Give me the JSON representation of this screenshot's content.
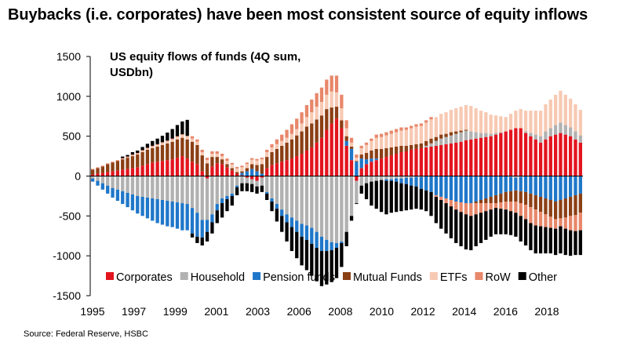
{
  "title": "Buybacks (i.e. corporates) have been most consistent source of equity inflows",
  "source": "Source: Federal Reserve, HSBC",
  "chart_data": {
    "type": "bar",
    "stacked": true,
    "subtitle_line1": "US equity flows of funds (4Q sum,",
    "subtitle_line2": "USDbn)",
    "ylim": [
      -1500,
      1500
    ],
    "yticks": [
      -1500,
      -1000,
      -500,
      0,
      500,
      1000,
      1500
    ],
    "x_tick_labels": [
      "1995",
      "1997",
      "1999",
      "2001",
      "2003",
      "2006",
      "2008",
      "2010",
      "2012",
      "2014",
      "2016",
      "2018"
    ],
    "legend_position": "bottom-inside",
    "grid": false,
    "series": [
      {
        "name": "Corporates",
        "color": "#e3141e",
        "values": [
          20,
          30,
          40,
          50,
          60,
          70,
          80,
          90,
          100,
          110,
          130,
          150,
          170,
          180,
          190,
          200,
          210,
          230,
          250,
          220,
          180,
          150,
          60,
          -30,
          120,
          160,
          150,
          110,
          70,
          30,
          10,
          -20,
          -40,
          -60,
          -20,
          100,
          140,
          160,
          180,
          200,
          220,
          250,
          280,
          320,
          360,
          420,
          480,
          580,
          660,
          720,
          600,
          380,
          200,
          -60,
          100,
          150,
          180,
          200,
          220,
          240,
          260,
          280,
          300,
          310,
          330,
          340,
          350,
          360,
          370,
          380,
          390,
          400,
          410,
          420,
          430,
          450,
          460,
          470,
          480,
          490,
          500,
          520,
          540,
          560,
          580,
          600,
          600,
          540,
          500,
          460,
          420,
          460,
          500,
          520,
          540,
          520,
          500,
          460,
          420
        ]
      },
      {
        "name": "Household",
        "color": "#b1b1b1",
        "values": [
          -30,
          -60,
          -90,
          -120,
          -150,
          -170,
          -190,
          -210,
          -230,
          -250,
          -260,
          -270,
          -280,
          -290,
          -300,
          -310,
          -320,
          -330,
          -340,
          -350,
          -400,
          -460,
          -550,
          -520,
          -480,
          -350,
          -280,
          -250,
          -220,
          -120,
          -90,
          -70,
          -60,
          -70,
          -100,
          -200,
          -280,
          -350,
          -420,
          -480,
          -520,
          -560,
          -600,
          -620,
          -650,
          -700,
          -760,
          -800,
          -830,
          -840,
          -820,
          -700,
          -500,
          -280,
          -120,
          -90,
          -70,
          -60,
          -50,
          -40,
          -40,
          -30,
          -30,
          -20,
          -20,
          -10,
          -10,
          20,
          40,
          60,
          80,
          90,
          100,
          110,
          120,
          120,
          100,
          80,
          60,
          50,
          30,
          20,
          10,
          0,
          -10,
          -20,
          -10,
          20,
          40,
          60,
          80,
          100,
          100,
          120,
          130,
          120,
          110,
          100,
          90,
          110,
          120
        ]
      },
      {
        "name": "Pension funds",
        "color": "#1f77c9",
        "values": [
          -40,
          -60,
          -80,
          -100,
          -120,
          -140,
          -160,
          -180,
          -200,
          -220,
          -240,
          -260,
          -280,
          -300,
          -310,
          -320,
          -320,
          -330,
          -340,
          -330,
          -320,
          -300,
          -220,
          -150,
          -100,
          -80,
          -60,
          -40,
          -30,
          -20,
          30,
          60,
          90,
          60,
          30,
          -20,
          -40,
          -60,
          -80,
          -100,
          -120,
          -140,
          -160,
          -180,
          -200,
          -200,
          -180,
          -140,
          -100,
          -60,
          -20,
          60,
          140,
          180,
          120,
          60,
          40,
          20,
          0,
          -20,
          -20,
          -40,
          -60,
          -80,
          -100,
          -120,
          -150,
          -180,
          -200,
          -240,
          -260,
          -280,
          -300,
          -320,
          -330,
          -340,
          -340,
          -320,
          -300,
          -280,
          -260,
          -240,
          -220,
          -200,
          -180,
          -160,
          -180,
          -200,
          -220,
          -240,
          -260,
          -280,
          -300,
          -320,
          -300,
          -280,
          -260,
          -240,
          -220,
          -200,
          -180
        ]
      },
      {
        "name": "Mutual Funds",
        "color": "#8b3f14",
        "values": [
          60,
          70,
          80,
          100,
          110,
          120,
          130,
          140,
          150,
          160,
          170,
          180,
          180,
          190,
          200,
          210,
          220,
          230,
          230,
          240,
          250,
          240,
          200,
          160,
          120,
          80,
          60,
          40,
          30,
          20,
          20,
          40,
          60,
          80,
          120,
          140,
          160,
          180,
          200,
          220,
          240,
          260,
          280,
          300,
          300,
          290,
          280,
          260,
          200,
          150,
          100,
          60,
          30,
          10,
          50,
          80,
          100,
          120,
          120,
          110,
          100,
          90,
          80,
          70,
          60,
          60,
          60,
          60,
          60,
          50,
          50,
          40,
          40,
          30,
          20,
          10,
          0,
          -20,
          -40,
          -60,
          -80,
          -100,
          -110,
          -120,
          -130,
          -140,
          -150,
          -160,
          -170,
          -180,
          -190,
          -200,
          -210,
          -220,
          -230,
          -240,
          -240,
          -250,
          -240,
          -230,
          -220
        ]
      },
      {
        "name": "ETFs",
        "color": "#f7c9b3",
        "values": [
          0,
          0,
          0,
          0,
          0,
          0,
          5,
          5,
          10,
          10,
          15,
          15,
          20,
          20,
          25,
          25,
          30,
          30,
          35,
          35,
          40,
          40,
          40,
          40,
          40,
          40,
          40,
          40,
          45,
          45,
          50,
          50,
          55,
          55,
          60,
          60,
          60,
          60,
          60,
          60,
          70,
          80,
          100,
          120,
          140,
          160,
          170,
          180,
          200,
          180,
          150,
          100,
          50,
          40,
          80,
          100,
          120,
          140,
          150,
          160,
          170,
          180,
          190,
          200,
          210,
          220,
          220,
          230,
          240,
          250,
          260,
          270,
          280,
          290,
          300,
          310,
          320,
          300,
          280,
          260,
          240,
          220,
          200,
          180,
          200,
          220,
          240,
          260,
          280,
          300,
          320,
          340,
          360,
          380,
          400,
          380,
          360,
          340,
          320,
          300,
          280
        ]
      },
      {
        "name": "RoW",
        "color": "#e8876a",
        "values": [
          10,
          10,
          10,
          10,
          10,
          10,
          10,
          10,
          10,
          10,
          10,
          10,
          10,
          10,
          10,
          10,
          10,
          10,
          10,
          10,
          30,
          30,
          30,
          30,
          30,
          30,
          30,
          30,
          20,
          20,
          20,
          20,
          20,
          20,
          20,
          30,
          40,
          60,
          80,
          100,
          120,
          130,
          140,
          150,
          160,
          170,
          180,
          190,
          200,
          210,
          170,
          100,
          60,
          40,
          30,
          30,
          30,
          40,
          40,
          40,
          40,
          40,
          40,
          30,
          30,
          30,
          30,
          30,
          30,
          -20,
          -40,
          -60,
          -80,
          -100,
          -120,
          -140,
          -160,
          -140,
          -120,
          -100,
          -80,
          -60,
          -80,
          -100,
          -120,
          -140,
          -160,
          -180,
          -200,
          -200,
          -180,
          -160,
          -140,
          -120,
          -100,
          -140,
          -180,
          -200,
          -220,
          -200,
          -180
        ]
      },
      {
        "name": "Other",
        "color": "#000000",
        "values": [
          0,
          0,
          0,
          0,
          0,
          0,
          20,
          20,
          30,
          30,
          40,
          50,
          60,
          70,
          80,
          100,
          120,
          140,
          160,
          200,
          -50,
          -80,
          -100,
          -120,
          -140,
          -160,
          -180,
          -150,
          -120,
          -100,
          -100,
          -100,
          -100,
          -90,
          -80,
          -80,
          -120,
          -160,
          -200,
          -240,
          -300,
          -330,
          -360,
          -380,
          -400,
          -420,
          -440,
          -420,
          -400,
          -380,
          -300,
          -180,
          -60,
          -10,
          -100,
          -200,
          -300,
          -350,
          -400,
          -420,
          -400,
          -380,
          -350,
          -330,
          -300,
          -280,
          -260,
          -260,
          -300,
          -330,
          -360,
          -380,
          -400,
          -420,
          -430,
          -440,
          -430,
          -400,
          -380,
          -360,
          -340,
          -330,
          -320,
          -310,
          -300,
          -300,
          -320,
          -330,
          -340,
          -350,
          -340,
          -330,
          -320,
          -330,
          -340,
          -330,
          -320,
          -300,
          -310,
          -320,
          -330
        ]
      }
    ]
  }
}
